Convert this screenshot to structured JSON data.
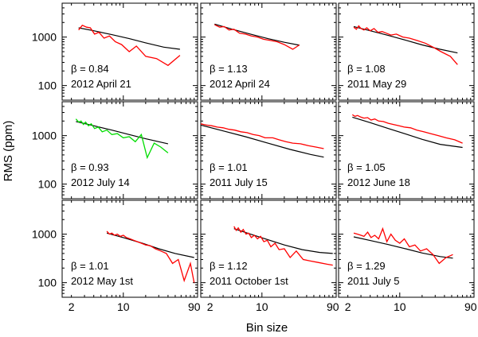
{
  "figure": {
    "ylabel": "RMS (ppm)",
    "xlabel": "Bin size"
  },
  "chart_data": {
    "type": "line",
    "xscale": "log",
    "yscale": "log",
    "xlim": [
      1.5,
      100
    ],
    "ylim": [
      50,
      5000
    ],
    "x_ticks": [
      2,
      10,
      90
    ],
    "y_ticks": [
      100,
      1000
    ],
    "colors": {
      "data": "#ff0000",
      "highlight": "#00dd00",
      "model": "#000000"
    },
    "panels": [
      {
        "beta_label": "β = 0.84",
        "date": "2012 April 21",
        "color": "#ff0000",
        "data": {
          "x": [
            2.5,
            2.8,
            3.2,
            3.6,
            4.1,
            4.7,
            5.5,
            6.5,
            7.8,
            9.5,
            12,
            15,
            20,
            28,
            40,
            58
          ],
          "y": [
            1400,
            1750,
            1600,
            1550,
            1150,
            1250,
            950,
            1050,
            800,
            700,
            500,
            650,
            400,
            360,
            260,
            420
          ]
        },
        "model": {
          "x": [
            2.5,
            4,
            7,
            12,
            20,
            35,
            58
          ],
          "y": [
            1550,
            1350,
            1120,
            930,
            760,
            620,
            560
          ]
        }
      },
      {
        "beta_label": "β = 1.13",
        "date": "2012 April 24",
        "color": "#ff0000",
        "data": {
          "x": [
            2.3,
            2.7,
            3.1,
            3.6,
            4.2,
            5,
            6,
            7.2,
            8.7,
            10.5,
            13,
            16,
            20,
            26,
            32
          ],
          "y": [
            1800,
            1600,
            1650,
            1400,
            1450,
            1200,
            1150,
            1050,
            1000,
            900,
            850,
            800,
            700,
            560,
            690
          ]
        },
        "model": {
          "x": [
            2.3,
            4,
            7,
            12,
            20,
            32
          ],
          "y": [
            1850,
            1450,
            1150,
            930,
            780,
            680
          ]
        }
      },
      {
        "beta_label": "β = 1.08",
        "date": "2011 May 29",
        "color": "#ff0000",
        "data": {
          "x": [
            2.4,
            2.6,
            2.8,
            3.0,
            3.3,
            3.6,
            4.0,
            4.5,
            5.1,
            5.8,
            6.6,
            7.6,
            9,
            11,
            13.5,
            17,
            22,
            28,
            36,
            48,
            60
          ],
          "y": [
            1600,
            1450,
            1700,
            1500,
            1400,
            1550,
            1350,
            1500,
            1250,
            1300,
            1200,
            1100,
            1150,
            1000,
            950,
            850,
            750,
            620,
            500,
            400,
            270
          ]
        },
        "model": {
          "x": [
            2.4,
            4,
            7,
            12,
            20,
            35,
            60
          ],
          "y": [
            1650,
            1350,
            1080,
            860,
            690,
            560,
            470
          ]
        }
      },
      {
        "beta_label": "β = 0.93",
        "date": "2012 July 14",
        "color": "#00dd00",
        "data": {
          "x": [
            2.3,
            2.5,
            2.7,
            2.9,
            3.1,
            3.4,
            3.7,
            4.1,
            4.6,
            5.2,
            6,
            7,
            8.3,
            10,
            12,
            14.5,
            17.5,
            21,
            26,
            32,
            40
          ],
          "y": [
            2200,
            1900,
            2000,
            1700,
            1900,
            1600,
            1750,
            1400,
            1500,
            1200,
            1300,
            1050,
            1100,
            900,
            950,
            750,
            1050,
            350,
            700,
            580,
            440
          ]
        },
        "model": {
          "x": [
            2.3,
            4,
            7,
            12,
            20,
            40
          ],
          "y": [
            1950,
            1600,
            1300,
            1050,
            860,
            680
          ]
        }
      },
      {
        "beta_label": "β = 1.01",
        "date": "2011 July 15",
        "color": "#ff0000",
        "data": {
          "x": [
            1.5,
            1.8,
            2.1,
            2.5,
            3.0,
            3.6,
            4.3,
            5.2,
            6.3,
            7.6,
            9.2,
            11,
            14,
            17,
            21,
            26,
            33,
            42,
            54,
            68
          ],
          "y": [
            1750,
            1650,
            1600,
            1500,
            1450,
            1350,
            1300,
            1200,
            1150,
            1050,
            1000,
            900,
            900,
            820,
            750,
            700,
            680,
            620,
            580,
            540
          ]
        },
        "model": {
          "x": [
            1.5,
            3,
            6,
            12,
            24,
            45,
            68
          ],
          "y": [
            1650,
            1250,
            950,
            700,
            520,
            410,
            360
          ]
        }
      },
      {
        "beta_label": "β = 1.05",
        "date": "2012 June 18",
        "color": "#ff0000",
        "data": {
          "x": [
            2.3,
            2.5,
            2.7,
            3.0,
            3.3,
            3.7,
            4.1,
            4.6,
            5.2,
            6,
            7,
            8.2,
            9.8,
            11.5,
            14,
            17,
            21,
            26,
            33,
            42,
            55,
            70
          ],
          "y": [
            2700,
            2500,
            2600,
            2400,
            2300,
            2350,
            2100,
            2200,
            2000,
            1950,
            1800,
            1700,
            1600,
            1500,
            1450,
            1300,
            1200,
            1100,
            1000,
            900,
            820,
            700
          ]
        },
        "model": {
          "x": [
            2.3,
            4,
            7,
            12,
            20,
            35,
            70
          ],
          "y": [
            2400,
            1850,
            1400,
            1080,
            840,
            660,
            570
          ]
        }
      },
      {
        "beta_label": "β = 1.01",
        "date": "2012 May 1st",
        "color": "#ff0000",
        "data": {
          "x": [
            6,
            6.5,
            7,
            7.6,
            8.3,
            9.1,
            10,
            11,
            12.3,
            13.8,
            15.5,
            17.5,
            20,
            23,
            27,
            32,
            38,
            46,
            55,
            66,
            80,
            90
          ],
          "y": [
            1150,
            1000,
            1050,
            950,
            1000,
            900,
            950,
            850,
            800,
            750,
            700,
            650,
            600,
            580,
            500,
            450,
            400,
            250,
            300,
            110,
            250,
            100
          ]
        },
        "model": {
          "x": [
            6,
            10,
            18,
            30,
            50,
            90
          ],
          "y": [
            1050,
            850,
            650,
            500,
            400,
            330
          ]
        }
      },
      {
        "beta_label": "β = 1.12",
        "date": "2011 October 1st",
        "color": "#ff0000",
        "data": {
          "x": [
            4.2,
            4.5,
            4.8,
            5.2,
            5.6,
            6.1,
            6.6,
            7.2,
            7.9,
            8.7,
            9.6,
            10.6,
            11.8,
            13.2,
            15,
            17,
            20,
            24,
            29,
            36,
            45,
            58,
            75,
            90
          ],
          "y": [
            1450,
            1200,
            1350,
            1100,
            1250,
            1000,
            1050,
            850,
            950,
            800,
            900,
            700,
            750,
            550,
            650,
            480,
            500,
            330,
            450,
            300,
            280,
            260,
            240,
            230
          ]
        },
        "model": {
          "x": [
            4.2,
            7,
            12,
            20,
            35,
            60,
            90
          ],
          "y": [
            1300,
            1000,
            770,
            600,
            480,
            420,
            400
          ]
        }
      },
      {
        "beta_label": "β = 1.29",
        "date": "2011 July 5",
        "color": "#ff0000",
        "data": {
          "x": [
            2.4,
            2.7,
            3.0,
            3.3,
            3.7,
            4.1,
            4.6,
            5.2,
            5.9,
            6.7,
            7.6,
            8.7,
            10,
            11.5,
            13.5,
            16,
            19,
            23,
            28,
            34,
            42,
            52
          ],
          "y": [
            1050,
            1000,
            950,
            900,
            1100,
            850,
            950,
            800,
            1300,
            700,
            1000,
            750,
            650,
            800,
            550,
            600,
            450,
            500,
            380,
            250,
            330,
            380
          ]
        },
        "model": {
          "x": [
            2.4,
            4,
            7,
            12,
            20,
            35,
            52
          ],
          "y": [
            880,
            740,
            610,
            500,
            410,
            345,
            320
          ]
        }
      }
    ]
  }
}
